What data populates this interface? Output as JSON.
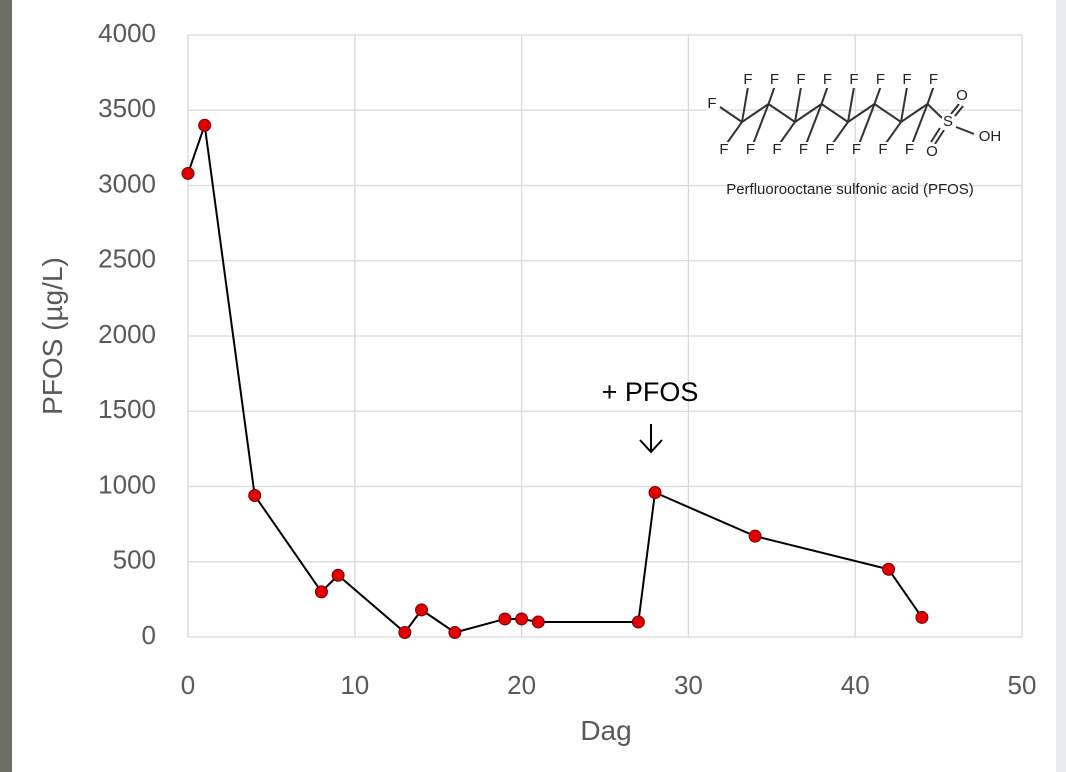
{
  "chart_data": {
    "type": "line",
    "xlabel": "Dag",
    "ylabel": "PFOS (µg/L)",
    "x": [
      0,
      1,
      4,
      8,
      9,
      13,
      14,
      16,
      19,
      20,
      21,
      27,
      28,
      34,
      42,
      44
    ],
    "series": [
      {
        "color": "#e00000",
        "line_color": "#000000",
        "values": [
          3080,
          3400,
          940,
          300,
          410,
          30,
          180,
          30,
          120,
          120,
          100,
          100,
          960,
          670,
          450,
          130
        ]
      }
    ],
    "xlim": [
      0,
      50
    ],
    "xticks": [
      0,
      10,
      20,
      30,
      40,
      50
    ],
    "ylim": [
      0,
      4000
    ],
    "yticks": [
      0,
      500,
      1000,
      1500,
      2000,
      2500,
      3000,
      3500,
      4000
    ],
    "grid": true,
    "annotation": "+ PFOS",
    "structure": {
      "atoms": [
        "F",
        "F",
        "F",
        "F",
        "F",
        "F",
        "F",
        "F",
        "F",
        "F",
        "F",
        "F",
        "F",
        "F",
        "F",
        "F",
        "F",
        "S",
        "O",
        "O",
        "OH"
      ],
      "caption": "Perfluorooctane sulfonic acid (PFOS)"
    }
  }
}
